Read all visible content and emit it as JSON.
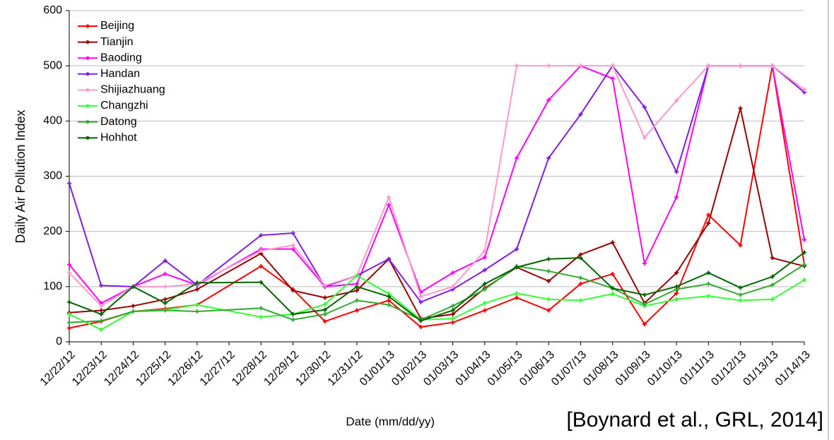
{
  "chart_data": {
    "type": "line",
    "ylabel": "Daily Air Pollution Index",
    "xlabel": "Date (mm/dd/yy)",
    "annotation": "[Boynard et al., GRL, 2014]",
    "categories": [
      "12/22/12",
      "12/23/12",
      "12/24/12",
      "12/25/12",
      "12/26/12",
      "12/27/12",
      "12/28/12",
      "12/29/12",
      "12/30/12",
      "12/31/12",
      "01/01/13",
      "01/02/13",
      "01/03/13",
      "01/04/13",
      "01/05/13",
      "01/06/13",
      "01/07/13",
      "01/08/13",
      "01/09/13",
      "01/10/13",
      "01/11/13",
      "01/12/13",
      "01/13/13",
      "01/14/13"
    ],
    "ylim": [
      0,
      600
    ],
    "yticks": [
      0,
      100,
      200,
      300,
      400,
      500,
      600
    ],
    "grid": true,
    "legend": "upper left",
    "connect_gaps": true,
    "series": [
      {
        "name": "Beijing",
        "color": "#ff0000",
        "values": [
          25,
          37,
          55,
          60,
          67,
          null,
          137,
          95,
          37,
          57,
          75,
          27,
          35,
          57,
          80,
          57,
          105,
          123,
          32,
          88,
          230,
          175,
          500,
          140
        ]
      },
      {
        "name": "Tianjin",
        "color": "#990000",
        "values": [
          53,
          57,
          65,
          77,
          95,
          null,
          160,
          93,
          80,
          93,
          150,
          42,
          50,
          97,
          135,
          110,
          158,
          180,
          70,
          125,
          215,
          423,
          152,
          137
        ]
      },
      {
        "name": "Baoding",
        "color": "#ff00ff",
        "values": [
          140,
          70,
          100,
          123,
          103,
          null,
          168,
          168,
          100,
          105,
          248,
          90,
          125,
          153,
          333,
          438,
          500,
          477,
          142,
          262,
          500,
          500,
          500,
          185
        ]
      },
      {
        "name": "Handan",
        "color": "#7f1ee6",
        "values": [
          287,
          102,
          100,
          147,
          103,
          null,
          193,
          197,
          100,
          120,
          150,
          72,
          95,
          130,
          168,
          333,
          412,
          500,
          425,
          308,
          500,
          500,
          500,
          452
        ]
      },
      {
        "name": "Shijiazhuang",
        "color": "#ff99cc",
        "values": [
          125,
          65,
          100,
          100,
          105,
          null,
          165,
          175,
          102,
          120,
          262,
          82,
          100,
          165,
          500,
          500,
          500,
          500,
          370,
          437,
          500,
          500,
          500,
          457
        ]
      },
      {
        "name": "Changzhi",
        "color": "#33ff33",
        "values": [
          50,
          22,
          55,
          58,
          67,
          null,
          45,
          50,
          68,
          120,
          87,
          40,
          42,
          70,
          88,
          77,
          75,
          87,
          65,
          77,
          83,
          75,
          77,
          112
        ]
      },
      {
        "name": "Datong",
        "color": "#33aa33",
        "values": [
          35,
          38,
          55,
          57,
          55,
          null,
          61,
          40,
          50,
          75,
          67,
          40,
          65,
          95,
          137,
          128,
          116,
          97,
          68,
          95,
          105,
          85,
          103,
          140
        ]
      },
      {
        "name": "Hohhot",
        "color": "#006600",
        "values": [
          72,
          50,
          100,
          70,
          107,
          null,
          108,
          50,
          58,
          100,
          82,
          38,
          57,
          105,
          135,
          150,
          152,
          97,
          85,
          100,
          125,
          98,
          118,
          162
        ]
      }
    ]
  }
}
